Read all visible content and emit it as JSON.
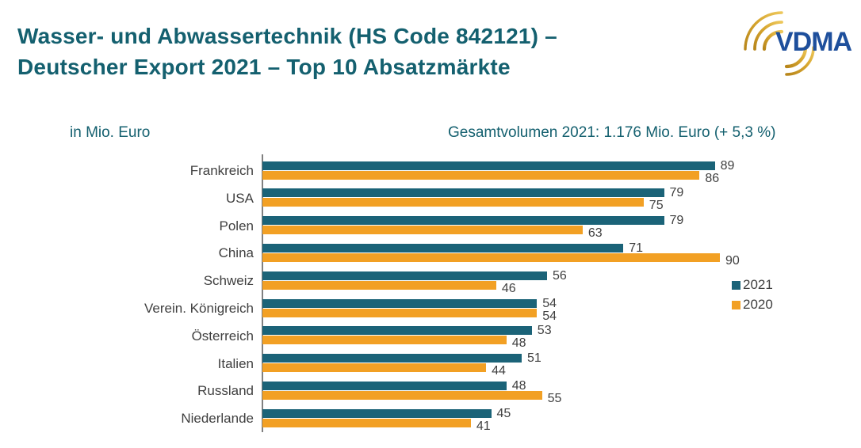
{
  "header": {
    "title_line1": "Wasser- und Abwassertechnik (HS Code 842121) –",
    "title_line2": "Deutscher Export 2021 – Top 10 Absatzmärkte"
  },
  "logo": {
    "text": "VDMA"
  },
  "chart": {
    "unit_label": "in Mio. Euro",
    "total_label": "Gesamtvolumen 2021: 1.176 Mio. Euro (+ 5,3 %)"
  },
  "legend": {
    "items": [
      {
        "label": "2021",
        "color": "#1B6378"
      },
      {
        "label": "2020",
        "color": "#F2A024"
      }
    ]
  },
  "chart_data": {
    "type": "bar",
    "orientation": "horizontal",
    "title": "Wasser- und Abwassertechnik (HS Code 842121) – Deutscher Export 2021 – Top 10 Absatzmärkte",
    "subtitle": "Gesamtvolumen 2021: 1.176 Mio. Euro (+ 5,3 %)",
    "unit": "in Mio. Euro",
    "categories": [
      "Frankreich",
      "USA",
      "Polen",
      "China",
      "Schweiz",
      "Verein. Königreich",
      "Österreich",
      "Italien",
      "Russland",
      "Niederlande"
    ],
    "series": [
      {
        "name": "2021",
        "color": "#1B6378",
        "values": [
          89,
          79,
          79,
          71,
          56,
          54,
          53,
          51,
          48,
          45
        ]
      },
      {
        "name": "2020",
        "color": "#F2A024",
        "values": [
          86,
          75,
          63,
          90,
          46,
          54,
          48,
          44,
          55,
          41
        ]
      }
    ],
    "xlim": [
      0,
      90
    ],
    "grid": false,
    "value_labels": "outside-end",
    "legend_position": "right"
  },
  "colors": {
    "title": "#14606F",
    "bar_2021": "#1B6378",
    "bar_2020": "#F2A024",
    "text": "#3F3F3F",
    "axis": "#808080",
    "logo_blue": "#1E4F9C",
    "logo_gold_dark": "#B8861B",
    "logo_gold_light": "#EDC75B",
    "background": "#FFFFFF"
  }
}
